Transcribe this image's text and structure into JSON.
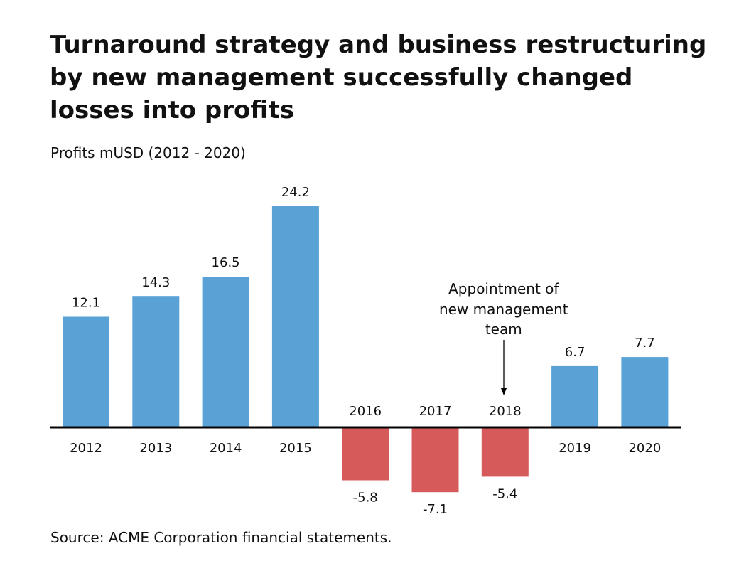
{
  "title": "Turnaround strategy and business restructuring by new management successfully changed losses into profits",
  "subtitle": "Profits mUSD (2012 - 2020)",
  "source": "Source: ACME Corporation financial statements.",
  "colors": {
    "positive": "#5aa2d6",
    "negative": "#d65a5a",
    "axis": "#000000"
  },
  "chart_data": {
    "type": "bar",
    "title": "Turnaround strategy and business restructuring by new management successfully changed losses into profits",
    "subtitle": "Profits mUSD (2012 - 2020)",
    "categories": [
      "2012",
      "2013",
      "2014",
      "2015",
      "2016",
      "2017",
      "2018",
      "2019",
      "2020"
    ],
    "values": [
      12.1,
      14.3,
      16.5,
      24.2,
      -5.8,
      -7.1,
      -5.4,
      6.7,
      7.7
    ],
    "value_labels": [
      "12.1",
      "14.3",
      "16.5",
      "24.2",
      "-5.8",
      "-7.1",
      "-5.4",
      "6.7",
      "7.7"
    ],
    "xlabel": "",
    "ylabel": "",
    "ylim": [
      -7.1,
      24.2
    ],
    "grid": false,
    "legend": "none",
    "annotation": {
      "category": "2018",
      "lines": [
        "Appointment of",
        "new management",
        "team"
      ]
    }
  }
}
